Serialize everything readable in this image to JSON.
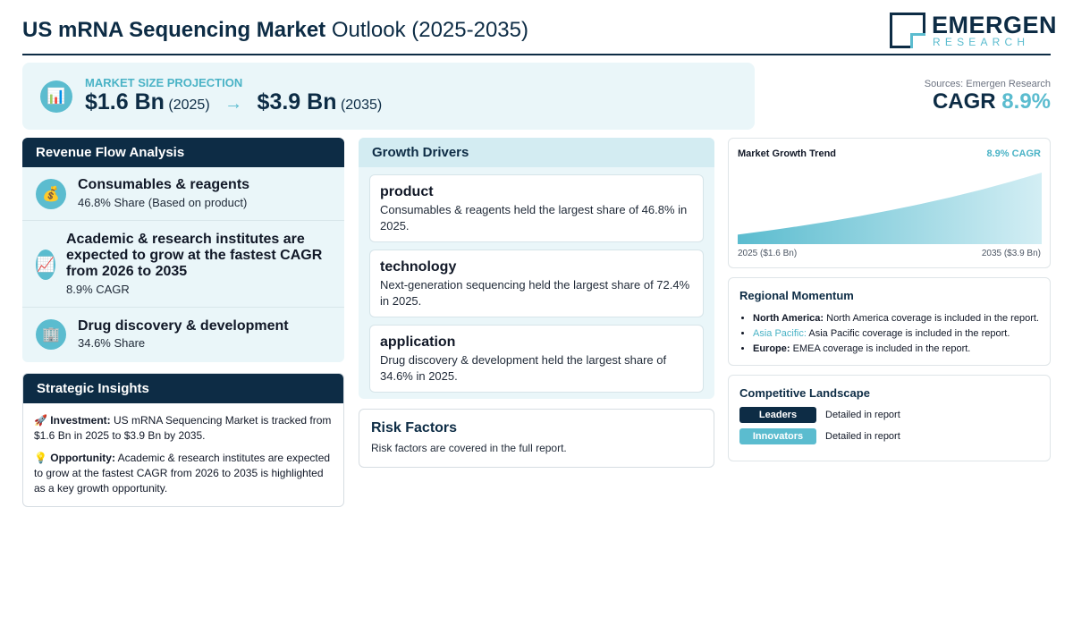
{
  "header": {
    "title_bold": "US mRNA Sequencing Market",
    "title_rest": "Outlook (2025-2035)",
    "logo_main": "EMERGEN",
    "logo_sub": "RESEARCH"
  },
  "projection": {
    "icon": "bar-chart-icon",
    "label": "MARKET SIZE PROJECTION",
    "start_value": "$1.6 Bn",
    "start_year": "(2025)",
    "arrow": "→",
    "end_value": "$3.9 Bn",
    "end_year": "(2035)"
  },
  "summary": {
    "source": "Sources: Emergen Research",
    "cagr_label": "CAGR",
    "cagr_value": "8.9%"
  },
  "revenue": {
    "title": "Revenue Flow Analysis",
    "items": [
      {
        "icon": "money-bag-icon",
        "glyph": "💰",
        "title": "Consumables & reagents",
        "sub": "46.8% Share (Based on product)"
      },
      {
        "icon": "trend-up-icon",
        "glyph": "📈",
        "title": "Academic & research institutes are expected to grow at the fastest CAGR from 2026 to 2035",
        "sub": "8.9% CAGR"
      },
      {
        "icon": "building-icon",
        "glyph": "🏢",
        "title": "Drug discovery & development",
        "sub": "34.6% Share"
      }
    ]
  },
  "insights": {
    "title": "Strategic Insights",
    "investment_icon": "🚀",
    "investment_label": "Investment:",
    "investment_text": "US mRNA Sequencing Market is tracked from $1.6 Bn in 2025 to $3.9 Bn by 2035.",
    "opportunity_icon": "💡",
    "opportunity_label": "Opportunity:",
    "opportunity_text": "Academic & research institutes are expected to grow at the fastest CAGR from 2026 to 2035 is highlighted as a key growth opportunity."
  },
  "drivers": {
    "title": "Growth Drivers",
    "items": [
      {
        "title": "product",
        "text": "Consumables & reagents held the largest share of 46.8% in 2025."
      },
      {
        "title": "technology",
        "text": "Next-generation sequencing held the largest share of 72.4% in 2025."
      },
      {
        "title": "application",
        "text": "Drug discovery & development held the largest share of 34.6% in 2025."
      }
    ]
  },
  "risk": {
    "title": "Risk Factors",
    "text": "Risk factors are covered in the full report."
  },
  "trend": {
    "title": "Market Growth Trend",
    "cagr": "8.9% CAGR",
    "start_label": "2025 ($1.6 Bn)",
    "end_label": "2035 ($3.9 Bn)"
  },
  "chart_data": {
    "type": "area",
    "x": [
      2025,
      2035
    ],
    "values": [
      1.6,
      3.9
    ],
    "title": "Market Growth Trend",
    "xlabel": "",
    "ylabel": "",
    "grid": false
  },
  "regional": {
    "title": "Regional Momentum",
    "items": [
      {
        "name": "North America:",
        "text": "North America coverage is included in the report."
      },
      {
        "name": "Asia Pacific:",
        "text": "Asia Pacific coverage is included in the report."
      },
      {
        "name": "Europe:",
        "text": "EMEA coverage is included in the report."
      }
    ]
  },
  "competitive": {
    "title": "Competitive Landscape",
    "rows": [
      {
        "label": "Leaders",
        "text": "Detailed in report",
        "color": "#0d2c45"
      },
      {
        "label": "Innovators",
        "text": "Detailed in report",
        "color": "#5bbccf"
      }
    ]
  }
}
